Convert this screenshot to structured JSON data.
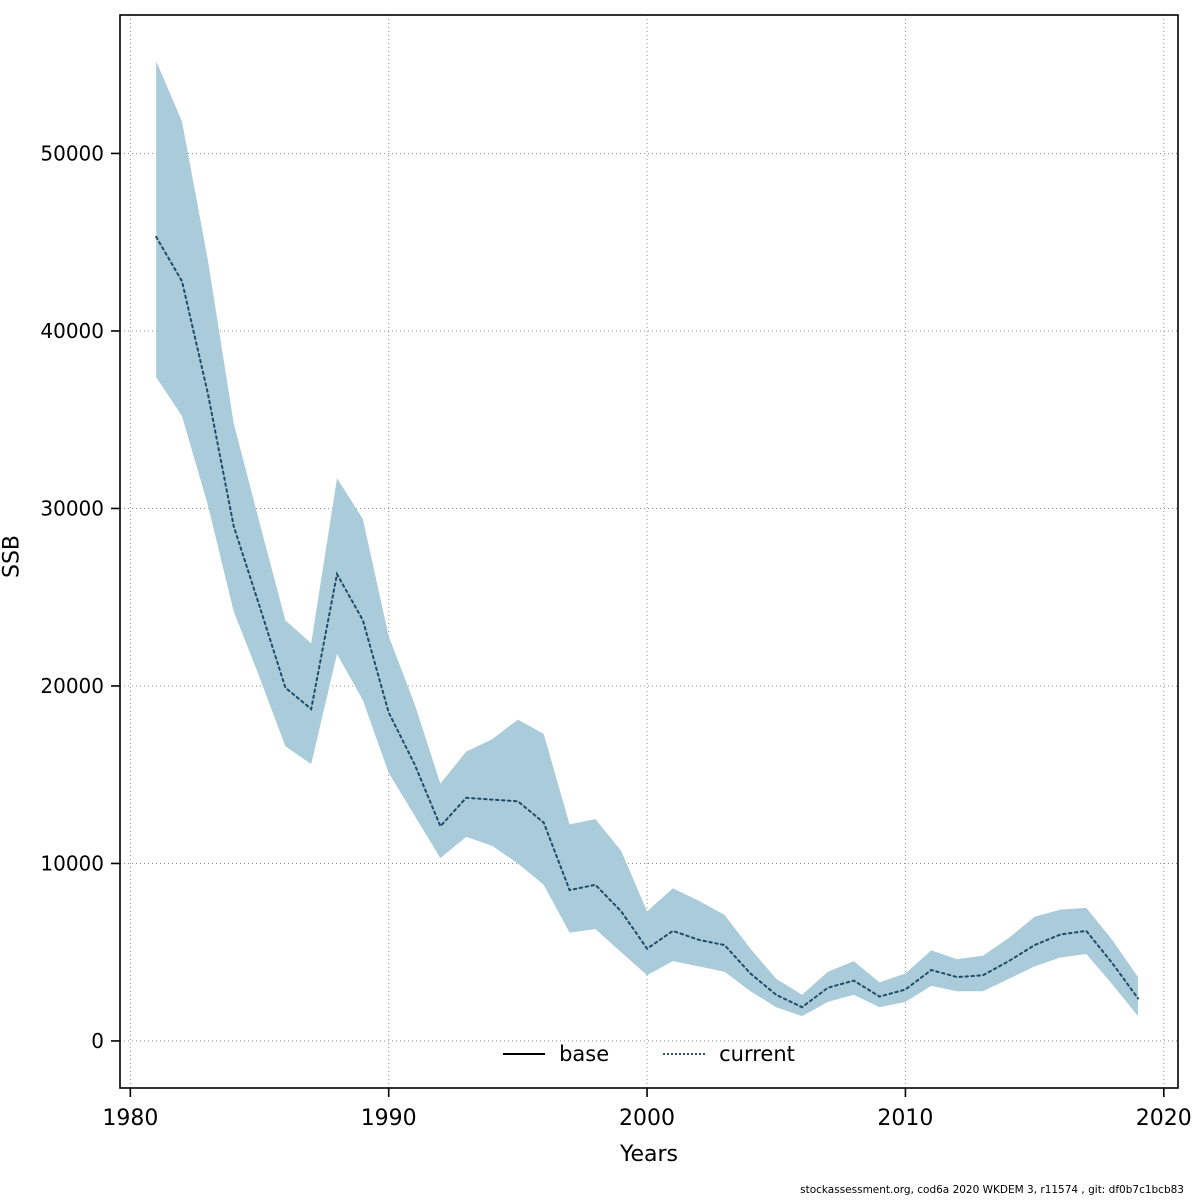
{
  "footer": "stockassessment.org, cod6a 2020 WKDEM 3, r11574 , git: df0b7c1bcb83",
  "colors": {
    "ribbon": "#aacbd9",
    "line": "#1e4d68",
    "legend_base": "#000000",
    "legend_current": "#2b5d7d",
    "grid": "#8c8c8c"
  },
  "legend": {
    "items": [
      {
        "label": "base",
        "style": "solid",
        "color": "#000000"
      },
      {
        "label": "current",
        "style": "dotted",
        "color": "#2b5d7d"
      }
    ]
  },
  "chart_data": {
    "type": "area",
    "title": "",
    "xlabel": "Years",
    "ylabel": "SSB",
    "xlim": [
      1979.6,
      2020.55
    ],
    "ylim": [
      0,
      55200
    ],
    "x_ticks": [
      1980,
      1990,
      2000,
      2010,
      2020
    ],
    "y_ticks": [
      0,
      10000,
      20000,
      30000,
      40000,
      50000
    ],
    "grid": true,
    "legend_position": "bottom-center-inside",
    "series": [
      {
        "name": "current",
        "x": [
          1981,
          1982,
          1983,
          1984,
          1985,
          1986,
          1987,
          1988,
          1989,
          1990,
          1991,
          1992,
          1993,
          1994,
          1995,
          1996,
          1997,
          1998,
          1999,
          2000,
          2001,
          2002,
          2003,
          2004,
          2005,
          2006,
          2007,
          2008,
          2009,
          2010,
          2011,
          2012,
          2013,
          2014,
          2015,
          2016,
          2017,
          2018,
          2019
        ],
        "values": [
          45300,
          42800,
          36500,
          29000,
          24500,
          19900,
          18700,
          26300,
          23700,
          18500,
          15600,
          12100,
          13700,
          13600,
          13500,
          12300,
          8500,
          8800,
          7300,
          5200,
          6200,
          5700,
          5400,
          3800,
          2600,
          1900,
          3000,
          3400,
          2500,
          2900,
          4000,
          3600,
          3700,
          4500,
          5400,
          6000,
          6200,
          4400,
          2400
        ],
        "upper": [
          55200,
          51800,
          44000,
          34800,
          29200,
          23700,
          22400,
          31700,
          29400,
          22800,
          19000,
          14500,
          16300,
          17000,
          18100,
          17300,
          12200,
          12500,
          10700,
          7300,
          8600,
          7900,
          7100,
          5200,
          3500,
          2600,
          3900,
          4500,
          3300,
          3800,
          5100,
          4600,
          4800,
          5800,
          7000,
          7400,
          7500,
          5700,
          3600
        ],
        "lower": [
          37400,
          35200,
          30200,
          24200,
          20500,
          16600,
          15600,
          21800,
          19200,
          15100,
          12700,
          10300,
          11500,
          11000,
          10000,
          8800,
          6100,
          6300,
          5000,
          3700,
          4500,
          4200,
          3900,
          2800,
          1900,
          1400,
          2200,
          2600,
          1900,
          2200,
          3100,
          2800,
          2800,
          3500,
          4200,
          4700,
          4900,
          3200,
          1400
        ]
      }
    ]
  }
}
